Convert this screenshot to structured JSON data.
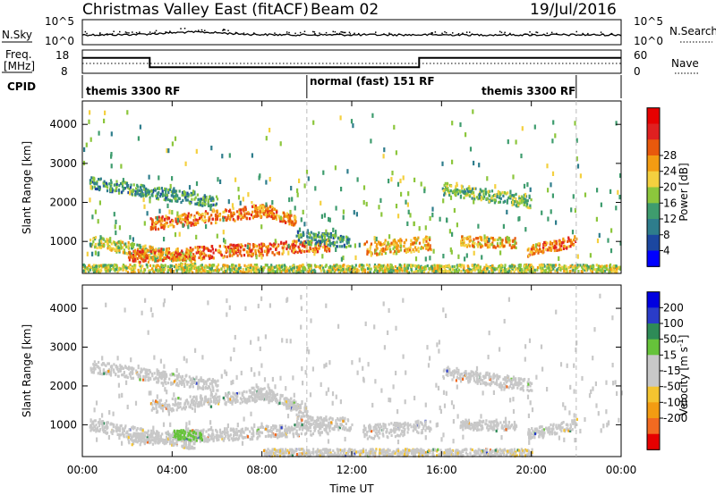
{
  "header": {
    "title": "Christmas Valley East (fitACF)",
    "beam": "Beam 02",
    "date": "19/Jul/2016"
  },
  "top_panels": {
    "nsky_label": "N.Sky",
    "nsearch_label": "N.Search",
    "nsky_ticks": [
      "10^5",
      "10^0"
    ],
    "nsearch_ticks": [
      "10^5",
      "10^0"
    ],
    "freq_label_1": "Freq.",
    "freq_label_2": "[MHz]",
    "freq_ticks": [
      "18",
      "8"
    ],
    "nave_label": "Nave",
    "nave_ticks": [
      "60",
      "0"
    ],
    "cpid_label": "CPID",
    "cpid_segments": [
      {
        "label": "themis 3300 RF",
        "start": 0,
        "end": 10
      },
      {
        "label": "normal (fast) 151 RF",
        "start": 10,
        "end": 22
      },
      {
        "label": "themis 3300 RF",
        "start": 22,
        "end": 24
      }
    ],
    "freq_steps": [
      [
        0,
        14.6
      ],
      [
        3,
        14.6
      ],
      [
        3,
        10.6
      ],
      [
        15,
        10.6
      ],
      [
        15,
        14.6
      ],
      [
        24,
        14.6
      ]
    ]
  },
  "chart_data": [
    {
      "type": "heatmap",
      "name": "Power",
      "ylabel": "Slant Range [km]",
      "xlim": [
        0,
        24
      ],
      "ylim": [
        180,
        4600
      ],
      "yticks": [
        "1000",
        "2000",
        "3000",
        "4000"
      ],
      "colorbar": {
        "label": "Power [dB]",
        "ticks": [
          "4",
          "8",
          "12",
          "16",
          "20",
          "24",
          "28"
        ],
        "range": [
          0,
          30
        ],
        "colors": [
          "#0000ff",
          "#1c47a0",
          "#2e7d8c",
          "#3e9c6e",
          "#8cc63c",
          "#f4d03f",
          "#f39c12",
          "#e8590c",
          "#e02020",
          "#e60000"
        ]
      },
      "bands": [
        {
          "t0": 0.3,
          "t1": 6,
          "r0": 2500,
          "r1": 2000,
          "w": 150,
          "v": 10
        },
        {
          "t0": 3,
          "t1": 8.5,
          "r0": 1450,
          "r1": 1800,
          "w": 160,
          "v": 21
        },
        {
          "t0": 7.5,
          "t1": 9.5,
          "r0": 1900,
          "r1": 1500,
          "w": 130,
          "v": 20
        },
        {
          "t0": 0.3,
          "t1": 5,
          "r0": 1000,
          "r1": 500,
          "w": 150,
          "v": 15
        },
        {
          "t0": 2,
          "t1": 11,
          "r0": 600,
          "r1": 900,
          "w": 160,
          "v": 22
        },
        {
          "t0": 9.5,
          "t1": 12,
          "r0": 1100,
          "r1": 1000,
          "w": 160,
          "v": 10
        },
        {
          "t0": 12.5,
          "t1": 15.5,
          "r0": 800,
          "r1": 950,
          "w": 180,
          "v": 19
        },
        {
          "t0": 16.8,
          "t1": 19.3,
          "r0": 1000,
          "r1": 950,
          "w": 130,
          "v": 18
        },
        {
          "t0": 19.8,
          "t1": 22,
          "r0": 750,
          "r1": 1000,
          "w": 140,
          "v": 22
        },
        {
          "t0": 16,
          "t1": 20,
          "r0": 2350,
          "r1": 2000,
          "w": 160,
          "v": 13
        },
        {
          "t0": 0,
          "t1": 24,
          "r0": 300,
          "r1": 300,
          "w": 100,
          "v": 15
        }
      ]
    },
    {
      "type": "heatmap",
      "name": "Velocity",
      "ylabel": "Slant Range [km]",
      "xlabel": "Time UT",
      "xlim": [
        0,
        24
      ],
      "ylim": [
        180,
        4600
      ],
      "yticks": [
        "1000",
        "2000",
        "3000",
        "4000"
      ],
      "xticks": [
        "00:00",
        "04:00",
        "08:00",
        "12:00",
        "16:00",
        "20:00",
        "00:00"
      ],
      "colorbar": {
        "label": "Velocity [m s^-1]",
        "ticks": [
          "200",
          "100",
          "50",
          "15",
          "-15",
          "-50",
          "-100",
          "-200"
        ],
        "range": [
          -250,
          250
        ],
        "colors": [
          "#0000e0",
          "#2a3cc8",
          "#2e8b57",
          "#66c33a",
          "#c8c8c8",
          "#c8c8c8",
          "#f4c430",
          "#f39c12",
          "#f26a21",
          "#e60000"
        ]
      },
      "bands": [
        {
          "t0": 0.3,
          "t1": 6,
          "r0": 2500,
          "r1": 2000,
          "w": 150,
          "v": 0
        },
        {
          "t0": 3,
          "t1": 8.5,
          "r0": 1450,
          "r1": 1800,
          "w": 160,
          "v": 0
        },
        {
          "t0": 7.5,
          "t1": 9.5,
          "r0": 1900,
          "r1": 1500,
          "w": 130,
          "v": 10
        },
        {
          "t0": 0.3,
          "t1": 5,
          "r0": 1000,
          "r1": 500,
          "w": 150,
          "v": 0
        },
        {
          "t0": 2,
          "t1": 11,
          "r0": 600,
          "r1": 900,
          "w": 160,
          "v": 0
        },
        {
          "t0": 4,
          "t1": 5.3,
          "r0": 750,
          "r1": 700,
          "w": 120,
          "v": 70
        },
        {
          "t0": 9.5,
          "t1": 12,
          "r0": 1100,
          "r1": 1000,
          "w": 160,
          "v": 0
        },
        {
          "t0": 12.5,
          "t1": 15.5,
          "r0": 800,
          "r1": 950,
          "w": 180,
          "v": 0
        },
        {
          "t0": 16.8,
          "t1": 19.3,
          "r0": 1000,
          "r1": 950,
          "w": 130,
          "v": 0
        },
        {
          "t0": 19.8,
          "t1": 22,
          "r0": 750,
          "r1": 1000,
          "w": 140,
          "v": 0
        },
        {
          "t0": 16,
          "t1": 20,
          "r0": 2350,
          "r1": 2000,
          "w": 160,
          "v": 0
        },
        {
          "t0": 9,
          "t1": 10,
          "r0": 1500,
          "r1": 1350,
          "w": 120,
          "v": -40
        },
        {
          "t0": 8,
          "t1": 20,
          "r0": 280,
          "r1": 280,
          "w": 90,
          "v": -40
        }
      ]
    }
  ]
}
